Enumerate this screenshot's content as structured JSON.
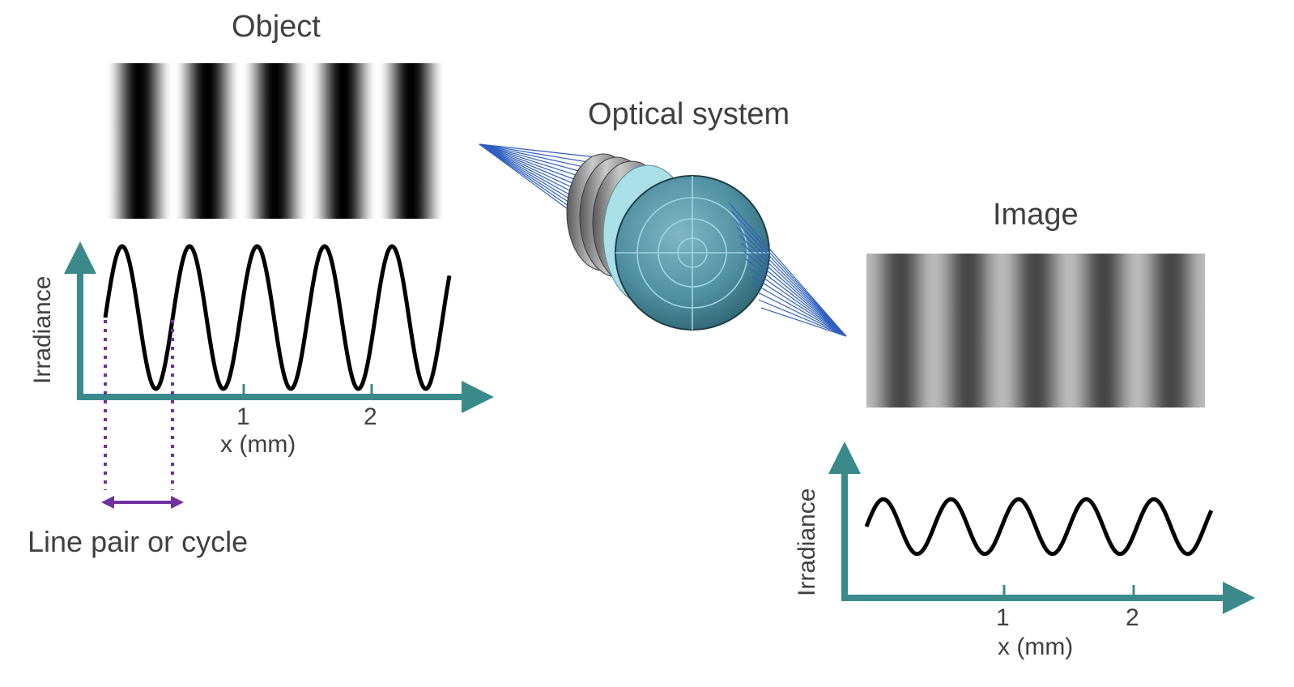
{
  "object": {
    "title": "Object",
    "ylabel": "Irradiance",
    "xlabel": "x (mm)",
    "ticks": [
      "1",
      "2"
    ],
    "cycles": 5,
    "contrast": 1.0
  },
  "optical_system": {
    "title": "Optical system"
  },
  "image": {
    "title": "Image",
    "ylabel": "Irradiance",
    "xlabel": "x (mm)",
    "ticks": [
      "1",
      "2"
    ],
    "cycles": 5,
    "contrast": 0.45
  },
  "annotation": {
    "label": "Line pair or cycle"
  },
  "colors": {
    "axis": "#3a8a8c",
    "curve": "#000000",
    "annotation": "#7030a0",
    "lens_body": "#4f8fa0",
    "ray": "#2f5fc0",
    "text": "#404040"
  }
}
